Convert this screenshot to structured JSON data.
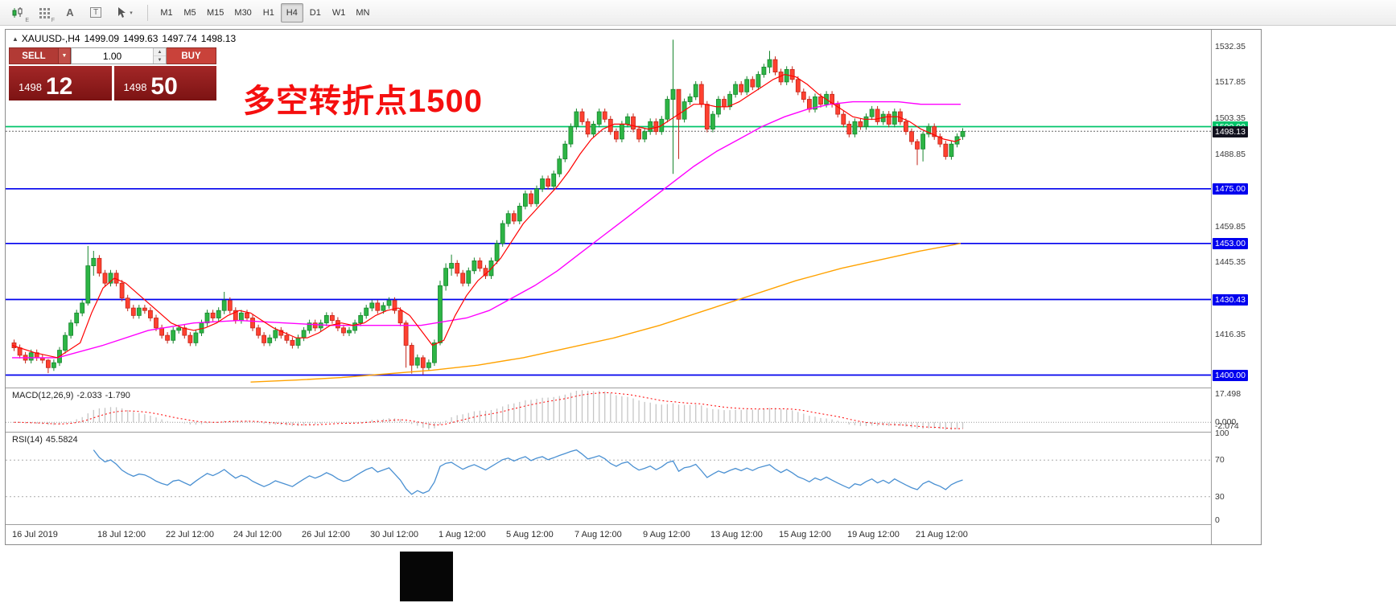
{
  "toolbar": {
    "icons": {
      "chart_sub": "E",
      "grid_sub": "F",
      "text_tool": "A",
      "textbox_tool": "T",
      "caret": "▾",
      "spin_up": "▲",
      "spin_down": "▼",
      "collapse": "▲",
      "dropdown": "▼"
    },
    "timeframes": [
      "M1",
      "M5",
      "M15",
      "M30",
      "H1",
      "H4",
      "D1",
      "W1",
      "MN"
    ],
    "active_timeframe": "H4"
  },
  "chart": {
    "symbol_line": "XAUUSD-,H4",
    "ohlc_open": "1499.09",
    "ohlc_high": "1499.63",
    "ohlc_low": "1497.74",
    "ohlc_close": "1498.13",
    "annotation": {
      "text": "多空转折点1500",
      "color": "#f50f0f"
    },
    "trade_panel": {
      "sell_label": "SELL",
      "buy_label": "BUY",
      "volume": "1.00",
      "bid_main": "1498",
      "bid_pips": "12",
      "ask_main": "1498",
      "ask_pips": "50"
    }
  },
  "colors": {
    "bull_fill": "#2db545",
    "bull_stroke": "#17862e",
    "bear_fill": "#ff4130",
    "bear_stroke": "#c3261a",
    "level_blue": "#0000ee",
    "level_green": "#00c46a",
    "current_line": "#666666",
    "current_box": "#12121f",
    "ma_fast": "#ff0000",
    "ma_mid": "#ff00ff",
    "ma_slow": "#ffa200",
    "macd_bar": "#c6c6c6",
    "macd_signal": "#ff0000",
    "rsi_line": "#4a90d2"
  },
  "chart_data": {
    "type": "candlestick",
    "symbol": "XAUUSD-",
    "timeframe": "H4",
    "y_axis": {
      "min": 1395,
      "max": 1539,
      "ticks": [
        "1532.35",
        "1517.85",
        "1503.35",
        "1488.85",
        "1459.85",
        "1445.35",
        "1416.35"
      ]
    },
    "levels": {
      "green": 1500.0,
      "blue": [
        1475.0,
        1453.0,
        1430.43,
        1400.0
      ],
      "current": 1498.13
    },
    "candles": {
      "first_open": 1413,
      "default_wick": 1.3,
      "closes": [
        1411,
        1408,
        1406,
        1409,
        1407,
        1406,
        1403,
        1405,
        1410,
        1416,
        1421,
        1425,
        1429,
        1444,
        1447,
        1441,
        1437,
        1441,
        1437,
        1431,
        1427,
        1424,
        1427,
        1426,
        1423,
        1419,
        1416,
        1414,
        1418,
        1419,
        1416,
        1413,
        1417,
        1421,
        1425,
        1423,
        1426,
        1430,
        1426,
        1422,
        1425,
        1423,
        1419,
        1416,
        1413,
        1415,
        1418,
        1416,
        1414,
        1412,
        1415,
        1418,
        1421,
        1419,
        1421,
        1424,
        1422,
        1419,
        1417,
        1418,
        1421,
        1424,
        1427,
        1429,
        1426,
        1428,
        1430,
        1426,
        1421,
        1412,
        1404,
        1407,
        1403,
        1405,
        1413,
        1436,
        1443,
        1445,
        1441,
        1437,
        1442,
        1446,
        1443,
        1440,
        1446,
        1453,
        1461,
        1465,
        1462,
        1468,
        1473,
        1469,
        1475,
        1479,
        1476,
        1481,
        1487,
        1493,
        1500,
        1506,
        1502,
        1497,
        1501,
        1506,
        1503,
        1498,
        1495,
        1501,
        1504,
        1499,
        1495,
        1498,
        1502,
        1498,
        1503,
        1511,
        1515,
        1503,
        1510,
        1512,
        1517,
        1509,
        1499,
        1505,
        1511,
        1508,
        1513,
        1517,
        1514,
        1519,
        1516,
        1521,
        1524,
        1527,
        1522,
        1518,
        1523,
        1519,
        1514,
        1511,
        1507,
        1512,
        1509,
        1513,
        1509,
        1505,
        1501,
        1497,
        1502,
        1500,
        1504,
        1507,
        1502,
        1505,
        1501,
        1506,
        1502,
        1498,
        1494,
        1491,
        1497,
        1500,
        1496,
        1493,
        1488,
        1493,
        1496,
        1498.1
      ],
      "wick_overrides": {
        "6": [
          1406.5,
          1400.8
        ],
        "13": [
          1452,
          1428
        ],
        "14": [
          1450,
          1440
        ],
        "37": [
          1433.5,
          1424.5
        ],
        "69": [
          1422,
          1403
        ],
        "70": [
          1413,
          1400.6
        ],
        "72": [
          1408,
          1400.2
        ],
        "75": [
          1438,
          1412
        ],
        "76": [
          1445,
          1434
        ],
        "77": [
          1448.5,
          1440
        ],
        "116": [
          1535,
          1481
        ],
        "117": [
          1512,
          1487
        ],
        "133": [
          1530.5,
          1521.5
        ],
        "159": [
          1495,
          1484.5
        ],
        "160": [
          1498,
          1486
        ]
      }
    },
    "moving_averages": [
      {
        "name": "ma-slow-orange",
        "color": "#ffa200",
        "width": 1.4,
        "points": [
          [
            42,
            1397.2
          ],
          [
            50,
            1398
          ],
          [
            58,
            1399
          ],
          [
            66,
            1400.5
          ],
          [
            74,
            1402
          ],
          [
            82,
            1404
          ],
          [
            90,
            1407
          ],
          [
            98,
            1411
          ],
          [
            106,
            1415
          ],
          [
            114,
            1420
          ],
          [
            122,
            1426
          ],
          [
            130,
            1432
          ],
          [
            138,
            1438
          ],
          [
            146,
            1443
          ],
          [
            154,
            1447
          ],
          [
            160,
            1450
          ],
          [
            167,
            1453
          ]
        ]
      },
      {
        "name": "ma-mid-magenta",
        "color": "#ff00ff",
        "width": 1.4,
        "points": [
          [
            0,
            1407
          ],
          [
            8,
            1407
          ],
          [
            16,
            1412
          ],
          [
            24,
            1418
          ],
          [
            32,
            1421
          ],
          [
            40,
            1422
          ],
          [
            48,
            1421
          ],
          [
            56,
            1420
          ],
          [
            64,
            1420
          ],
          [
            72,
            1420
          ],
          [
            80,
            1423
          ],
          [
            84,
            1426
          ],
          [
            88,
            1431
          ],
          [
            92,
            1436
          ],
          [
            96,
            1442
          ],
          [
            100,
            1449
          ],
          [
            104,
            1456
          ],
          [
            108,
            1463
          ],
          [
            112,
            1470
          ],
          [
            116,
            1477
          ],
          [
            120,
            1484
          ],
          [
            124,
            1490
          ],
          [
            128,
            1495
          ],
          [
            132,
            1500
          ],
          [
            136,
            1504
          ],
          [
            140,
            1507
          ],
          [
            144,
            1509
          ],
          [
            148,
            1510
          ],
          [
            152,
            1510
          ],
          [
            156,
            1510
          ],
          [
            160,
            1509
          ],
          [
            164,
            1509
          ],
          [
            167,
            1509
          ]
        ]
      },
      {
        "name": "ma-fast-red",
        "color": "#ff0000",
        "width": 1.2,
        "points": [
          [
            0,
            1412
          ],
          [
            4,
            1409
          ],
          [
            8,
            1407
          ],
          [
            12,
            1413
          ],
          [
            14,
            1425
          ],
          [
            16,
            1435
          ],
          [
            18,
            1439
          ],
          [
            20,
            1437
          ],
          [
            22,
            1433
          ],
          [
            24,
            1429
          ],
          [
            26,
            1425
          ],
          [
            28,
            1421
          ],
          [
            30,
            1419
          ],
          [
            32,
            1418
          ],
          [
            34,
            1419
          ],
          [
            36,
            1421
          ],
          [
            38,
            1424
          ],
          [
            40,
            1426
          ],
          [
            42,
            1425
          ],
          [
            44,
            1422
          ],
          [
            46,
            1419
          ],
          [
            48,
            1417
          ],
          [
            50,
            1415
          ],
          [
            52,
            1415
          ],
          [
            54,
            1417
          ],
          [
            56,
            1420
          ],
          [
            58,
            1421
          ],
          [
            60,
            1420
          ],
          [
            62,
            1421
          ],
          [
            64,
            1424
          ],
          [
            66,
            1426
          ],
          [
            68,
            1427
          ],
          [
            70,
            1424
          ],
          [
            72,
            1418
          ],
          [
            74,
            1412
          ],
          [
            76,
            1414
          ],
          [
            78,
            1424
          ],
          [
            80,
            1432
          ],
          [
            82,
            1438
          ],
          [
            84,
            1442
          ],
          [
            86,
            1447
          ],
          [
            88,
            1454
          ],
          [
            90,
            1461
          ],
          [
            92,
            1466
          ],
          [
            94,
            1471
          ],
          [
            96,
            1476
          ],
          [
            98,
            1482
          ],
          [
            100,
            1489
          ],
          [
            102,
            1495
          ],
          [
            104,
            1499
          ],
          [
            106,
            1501
          ],
          [
            108,
            1501
          ],
          [
            110,
            1500
          ],
          [
            112,
            1499
          ],
          [
            114,
            1500
          ],
          [
            116,
            1503
          ],
          [
            118,
            1506
          ],
          [
            120,
            1509
          ],
          [
            122,
            1509
          ],
          [
            124,
            1508
          ],
          [
            126,
            1508
          ],
          [
            128,
            1510
          ],
          [
            130,
            1513
          ],
          [
            132,
            1516
          ],
          [
            134,
            1519
          ],
          [
            136,
            1521
          ],
          [
            138,
            1520
          ],
          [
            140,
            1517
          ],
          [
            142,
            1513
          ],
          [
            144,
            1510
          ],
          [
            146,
            1507
          ],
          [
            148,
            1504
          ],
          [
            150,
            1503
          ],
          [
            152,
            1503
          ],
          [
            154,
            1504
          ],
          [
            156,
            1504
          ],
          [
            158,
            1502
          ],
          [
            160,
            1499
          ],
          [
            162,
            1497
          ],
          [
            164,
            1495
          ],
          [
            166,
            1494
          ],
          [
            167,
            1495
          ]
        ]
      }
    ],
    "macd": {
      "label": "MACD(12,26,9)",
      "value_main": "-2.033",
      "value_signal": "-1.790",
      "fast": 12,
      "slow": 26,
      "signal": 9,
      "axis_labels": [
        {
          "text": "17.498",
          "v": 17.498
        },
        {
          "text": "0.000",
          "v": 0
        },
        {
          "text": "-2.074",
          "v": -2.074
        }
      ]
    },
    "rsi": {
      "label": "RSI(14)",
      "value": "45.5824",
      "period": 14,
      "levels": [
        70,
        30
      ],
      "axis_labels": [
        {
          "text": "100",
          "v": 100
        },
        {
          "text": "70",
          "v": 70
        },
        {
          "text": "30",
          "v": 30
        },
        {
          "text": "0",
          "v": 0
        }
      ]
    },
    "time_labels": [
      {
        "idx": 0,
        "text": "16 Jul 2019"
      },
      {
        "idx": 15,
        "text": "18 Jul 12:00"
      },
      {
        "idx": 27,
        "text": "22 Jul 12:00"
      },
      {
        "idx": 39,
        "text": "24 Jul 12:00"
      },
      {
        "idx": 51,
        "text": "26 Jul 12:00"
      },
      {
        "idx": 63,
        "text": "30 Jul 12:00"
      },
      {
        "idx": 75,
        "text": "1 Aug 12:00"
      },
      {
        "idx": 87,
        "text": "5 Aug 12:00"
      },
      {
        "idx": 99,
        "text": "7 Aug 12:00"
      },
      {
        "idx": 111,
        "text": "9 Aug 12:00"
      },
      {
        "idx": 123,
        "text": "13 Aug 12:00"
      },
      {
        "idx": 135,
        "text": "15 Aug 12:00"
      },
      {
        "idx": 147,
        "text": "19 Aug 12:00"
      },
      {
        "idx": 159,
        "text": "21 Aug 12:00"
      }
    ]
  }
}
